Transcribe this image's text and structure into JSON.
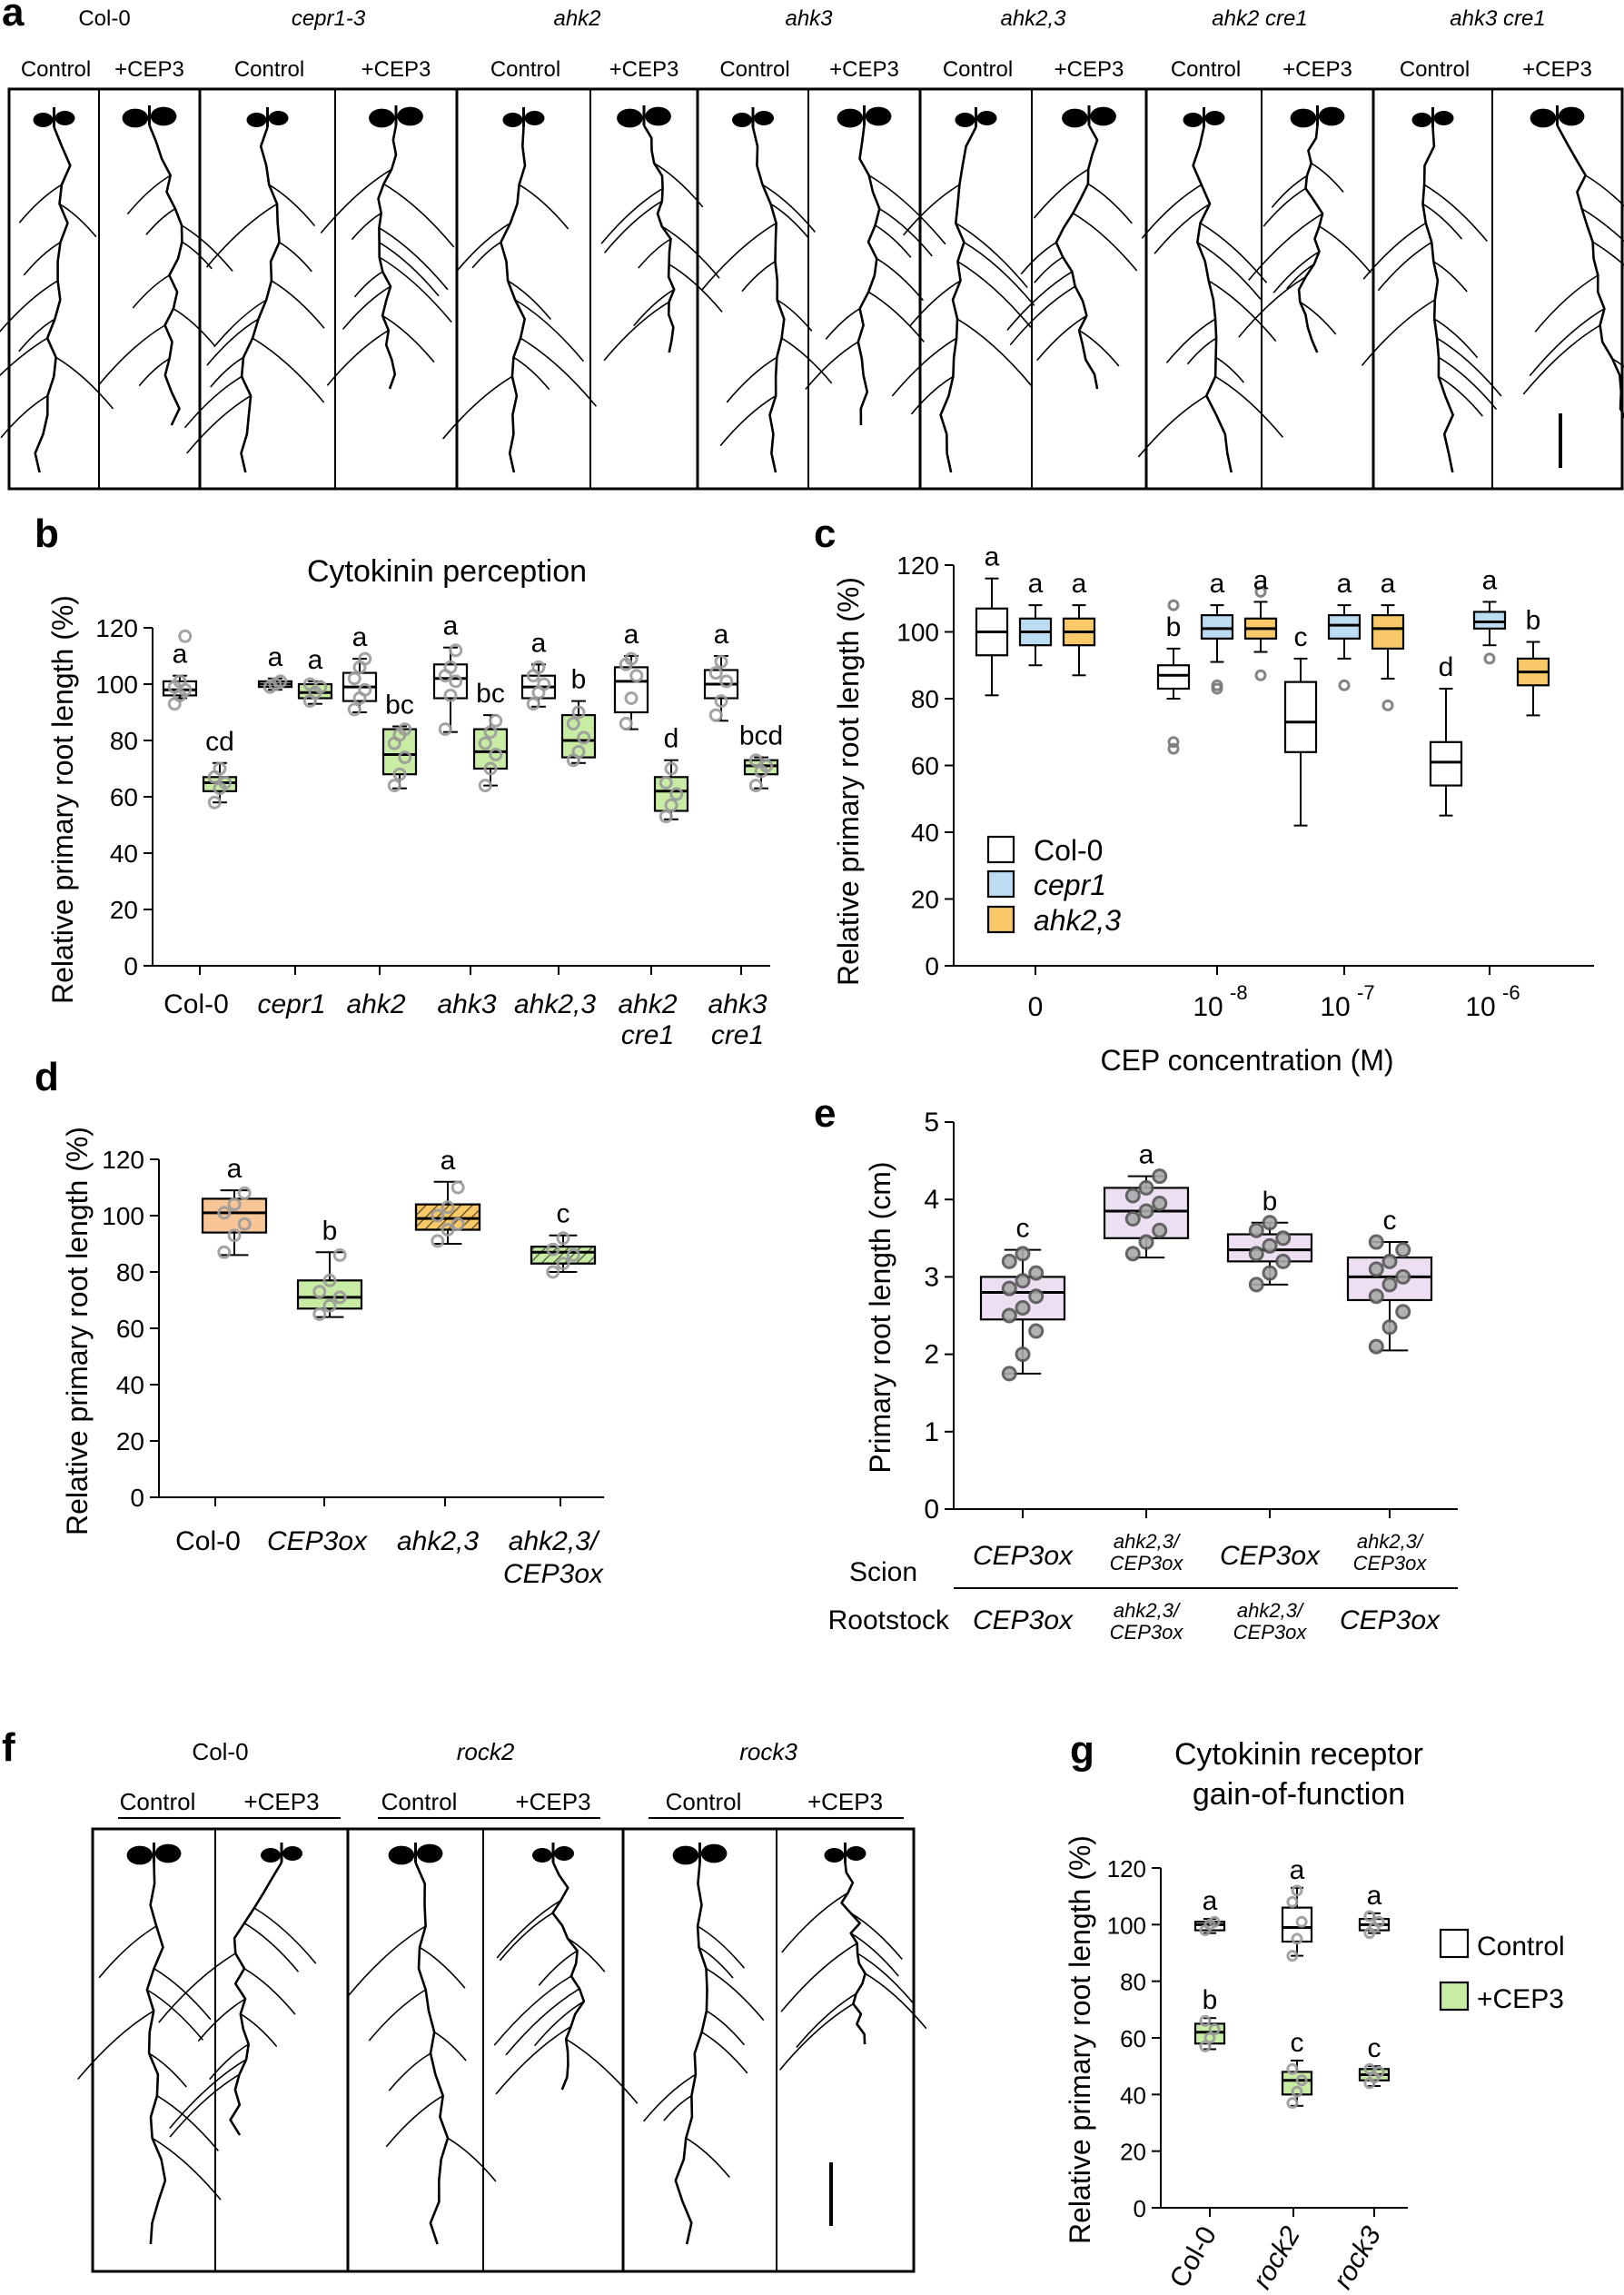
{
  "colors": {
    "white": "#ffffff",
    "green": "#c8eca4",
    "blue": "#bcdcf2",
    "yellow": "#f9c969",
    "orange": "#f8c596",
    "lavender": "#eddff2",
    "dot": "#9a9a9a",
    "dotDark": "#555555"
  },
  "panel_a": {
    "letter": "a",
    "genotypes": [
      "Col-0",
      "cepr1-3",
      "ahk2",
      "ahk3",
      "ahk2,3",
      "ahk2 cre1",
      "ahk3 cre1"
    ],
    "conditions": [
      "Control",
      "+CEP3"
    ]
  },
  "panel_f": {
    "letter": "f",
    "genotypes": [
      "Col-0",
      "rock2",
      "rock3"
    ],
    "conditions": [
      "Control",
      "+CEP3"
    ]
  },
  "chart_data": [
    {
      "id": "b",
      "type": "box",
      "title": "Cytokinin perception",
      "ylabel": "Relative primary root length (%)",
      "ylim": [
        0,
        120
      ],
      "yticks": [
        0,
        20,
        40,
        60,
        80,
        100,
        120
      ],
      "categories": [
        "Col-0",
        "cepr1",
        "ahk2",
        "ahk3",
        "ahk2,3",
        "ahk2\ncre1",
        "ahk3\ncre1"
      ],
      "series": [
        {
          "name": "Control",
          "color": "white",
          "boxes": [
            {
              "min": 95,
              "q1": 96,
              "med": 98,
              "q3": 101,
              "max": 103,
              "label": "a",
              "pts": [
                93,
                96,
                98,
                99,
                101,
                117
              ]
            },
            {
              "min": 98,
              "q1": 99,
              "med": 100,
              "q3": 101,
              "max": 102,
              "label": "a",
              "pts": [
                99,
                100,
                101
              ]
            },
            {
              "min": 90,
              "q1": 94,
              "med": 99,
              "q3": 104,
              "max": 109,
              "label": "a",
              "pts": [
                91,
                95,
                98,
                102,
                106,
                109
              ]
            },
            {
              "min": 83,
              "q1": 95,
              "med": 102,
              "q3": 107,
              "max": 113,
              "label": "a",
              "pts": [
                84,
                96,
                101,
                103,
                106,
                112
              ]
            },
            {
              "min": 92,
              "q1": 95,
              "med": 99,
              "q3": 103,
              "max": 107,
              "label": "a",
              "pts": [
                93,
                97,
                100,
                103,
                106
              ]
            },
            {
              "min": 84,
              "q1": 90,
              "med": 101,
              "q3": 106,
              "max": 110,
              "label": "a",
              "pts": [
                86,
                95,
                103,
                107,
                109
              ]
            },
            {
              "min": 87,
              "q1": 95,
              "med": 100,
              "q3": 105,
              "max": 110,
              "label": "a",
              "pts": [
                89,
                94,
                101,
                104,
                108
              ]
            }
          ]
        },
        {
          "name": "+CEP3",
          "color": "green",
          "boxes": [
            {
              "min": 58,
              "q1": 62,
              "med": 65,
              "q3": 67,
              "max": 72,
              "label": "cd",
              "pts": [
                58,
                63,
                65,
                67,
                70
              ]
            },
            {
              "min": 93,
              "q1": 95,
              "med": 97,
              "q3": 100,
              "max": 101,
              "label": "a",
              "pts": [
                94,
                97,
                99,
                100
              ]
            },
            {
              "min": 63,
              "q1": 68,
              "med": 75,
              "q3": 84,
              "max": 85,
              "label": "bc",
              "pts": [
                64,
                68,
                74,
                79,
                82,
                84
              ]
            },
            {
              "min": 64,
              "q1": 70,
              "med": 76,
              "q3": 84,
              "max": 89,
              "label": "bc",
              "pts": [
                64,
                70,
                75,
                79,
                83,
                87
              ]
            },
            {
              "min": 72,
              "q1": 74,
              "med": 80,
              "q3": 89,
              "max": 94,
              "label": "b",
              "pts": [
                73,
                76,
                81,
                86,
                90
              ]
            },
            {
              "min": 52,
              "q1": 55,
              "med": 62,
              "q3": 67,
              "max": 73,
              "label": "d",
              "pts": [
                53,
                57,
                61,
                65,
                70
              ]
            },
            {
              "min": 63,
              "q1": 68,
              "med": 71,
              "q3": 73,
              "max": 74,
              "label": "bcd",
              "pts": [
                64,
                69,
                71,
                73
              ]
            }
          ]
        }
      ]
    },
    {
      "id": "c",
      "type": "box",
      "xlabel": "CEP concentration (M)",
      "ylabel": "Relative primary root length (%)",
      "ylim": [
        0,
        120
      ],
      "yticks": [
        0,
        20,
        40,
        60,
        80,
        100,
        120
      ],
      "categories": [
        "0",
        "10",
        "10",
        "10"
      ],
      "category_exponents": [
        "",
        "-8",
        "-7",
        "-6"
      ],
      "legend": [
        "Col-0",
        "cepr1",
        "ahk2,3"
      ],
      "series": [
        {
          "name": "Col-0",
          "color": "white",
          "boxes": [
            {
              "min": 81,
              "q1": 93,
              "med": 100,
              "q3": 107,
              "max": 116,
              "label": "a",
              "pts": []
            },
            {
              "min": 80,
              "q1": 83,
              "med": 87,
              "q3": 90,
              "max": 95,
              "label": "b",
              "pts": [
                108,
                67,
                65
              ]
            },
            {
              "min": 42,
              "q1": 64,
              "med": 73,
              "q3": 85,
              "max": 92,
              "label": "c",
              "pts": []
            },
            {
              "min": 45,
              "q1": 54,
              "med": 61,
              "q3": 67,
              "max": 83,
              "label": "d",
              "pts": []
            }
          ]
        },
        {
          "name": "cepr1",
          "color": "blue",
          "boxes": [
            {
              "min": 90,
              "q1": 96,
              "med": 100,
              "q3": 104,
              "max": 108,
              "label": "a",
              "pts": []
            },
            {
              "min": 91,
              "q1": 98,
              "med": 101,
              "q3": 105,
              "max": 108,
              "label": "a",
              "pts": [
                84,
                83
              ]
            },
            {
              "min": 92,
              "q1": 98,
              "med": 102,
              "q3": 105,
              "max": 108,
              "label": "a",
              "pts": [
                84
              ]
            },
            {
              "min": 96,
              "q1": 101,
              "med": 103,
              "q3": 106,
              "max": 109,
              "label": "a",
              "pts": [
                92
              ]
            }
          ]
        },
        {
          "name": "ahk2,3",
          "color": "yellow",
          "boxes": [
            {
              "min": 87,
              "q1": 96,
              "med": 100,
              "q3": 104,
              "max": 108,
              "label": "a",
              "pts": []
            },
            {
              "min": 94,
              "q1": 98,
              "med": 101,
              "q3": 104,
              "max": 109,
              "label": "a",
              "pts": [
                112,
                87
              ]
            },
            {
              "min": 86,
              "q1": 95,
              "med": 101,
              "q3": 105,
              "max": 108,
              "label": "a",
              "pts": [
                78
              ]
            },
            {
              "min": 75,
              "q1": 84,
              "med": 88,
              "q3": 92,
              "max": 97,
              "label": "b",
              "pts": []
            }
          ]
        }
      ]
    },
    {
      "id": "d",
      "type": "box",
      "ylabel": "Relative primary root length (%)",
      "ylim": [
        0,
        120
      ],
      "yticks": [
        0,
        20,
        40,
        60,
        80,
        100,
        120
      ],
      "categories": [
        "Col-0",
        "CEP3ox",
        "ahk2,3",
        "ahk2,3/\nCEP3ox"
      ],
      "boxes": [
        {
          "min": 86,
          "q1": 94,
          "med": 101,
          "q3": 106,
          "max": 109,
          "label": "a",
          "color": "orange",
          "hatch": false,
          "pts": [
            87,
            93,
            97,
            101,
            104,
            108
          ]
        },
        {
          "min": 64,
          "q1": 67,
          "med": 71,
          "q3": 77,
          "max": 87,
          "label": "b",
          "color": "green",
          "hatch": false,
          "pts": [
            65,
            68,
            71,
            73,
            77,
            86
          ]
        },
        {
          "min": 90,
          "q1": 95,
          "med": 99,
          "q3": 104,
          "max": 112,
          "label": "a",
          "color": "yellow",
          "hatch": true,
          "pts": [
            91,
            95,
            97,
            100,
            103,
            110
          ]
        },
        {
          "min": 80,
          "q1": 83,
          "med": 87,
          "q3": 89,
          "max": 93,
          "label": "c",
          "color": "green",
          "hatch": true,
          "pts": [
            80,
            83,
            86,
            88,
            92
          ]
        }
      ]
    },
    {
      "id": "e",
      "type": "box",
      "ylabel": "Primary root length (cm)",
      "ylim": [
        0,
        5
      ],
      "yticks": [
        0,
        1,
        2,
        3,
        4,
        5
      ],
      "row_labels": [
        "Scion",
        "Rootstock"
      ],
      "scion": [
        "CEP3ox",
        "ahk2,3/\nCEP3ox",
        "CEP3ox",
        "ahk2,3/\nCEP3ox"
      ],
      "rootstock": [
        "CEP3ox",
        "ahk2,3/\nCEP3ox",
        "ahk2,3/\nCEP3ox",
        "CEP3ox"
      ],
      "boxes": [
        {
          "min": 1.75,
          "q1": 2.45,
          "med": 2.8,
          "q3": 3.0,
          "max": 3.35,
          "label": "c",
          "pts": [
            1.75,
            2.0,
            2.3,
            2.5,
            2.6,
            2.75,
            2.85,
            2.95,
            3.05,
            3.2,
            3.3
          ]
        },
        {
          "min": 3.25,
          "q1": 3.5,
          "med": 3.85,
          "q3": 4.15,
          "max": 4.3,
          "label": "a",
          "pts": [
            3.3,
            3.45,
            3.6,
            3.75,
            3.85,
            3.95,
            4.05,
            4.15,
            4.3
          ]
        },
        {
          "min": 2.9,
          "q1": 3.2,
          "med": 3.35,
          "q3": 3.55,
          "max": 3.7,
          "label": "b",
          "pts": [
            2.9,
            3.05,
            3.2,
            3.3,
            3.4,
            3.5,
            3.6,
            3.7
          ]
        },
        {
          "min": 2.05,
          "q1": 2.7,
          "med": 3.0,
          "q3": 3.25,
          "max": 3.45,
          "label": "c",
          "pts": [
            2.1,
            2.35,
            2.55,
            2.75,
            2.9,
            3.0,
            3.1,
            3.2,
            3.35,
            3.45
          ]
        }
      ]
    },
    {
      "id": "g",
      "type": "box",
      "title": "Cytokinin receptor\ngain-of-function",
      "ylabel": "Relative primary root length (%)",
      "ylim": [
        0,
        120
      ],
      "yticks": [
        0,
        20,
        40,
        60,
        80,
        100,
        120
      ],
      "categories": [
        "Col-0",
        "rock2",
        "rock3"
      ],
      "legend": [
        "Control",
        "+CEP3"
      ],
      "series": [
        {
          "name": "Control",
          "color": "white",
          "boxes": [
            {
              "min": 97,
              "q1": 98,
              "med": 100,
              "q3": 101,
              "max": 102,
              "label": "a",
              "pts": [
                98,
                100,
                101
              ]
            },
            {
              "min": 89,
              "q1": 94,
              "med": 99,
              "q3": 106,
              "max": 113,
              "label": "a",
              "pts": [
                89,
                95,
                101,
                108,
                112
              ]
            },
            {
              "min": 97,
              "q1": 98,
              "med": 100,
              "q3": 102,
              "max": 104,
              "label": "a",
              "pts": [
                97,
                99,
                101,
                103
              ]
            }
          ]
        },
        {
          "name": "+CEP3",
          "color": "green",
          "boxes": [
            {
              "min": 56,
              "q1": 58,
              "med": 62,
              "q3": 65,
              "max": 67,
              "label": "b",
              "pts": [
                57,
                60,
                63,
                66
              ]
            },
            {
              "min": 36,
              "q1": 40,
              "med": 45,
              "q3": 48,
              "max": 52,
              "label": "c",
              "pts": [
                37,
                41,
                45,
                49
              ]
            },
            {
              "min": 43,
              "q1": 45,
              "med": 47,
              "q3": 49,
              "max": 50,
              "label": "c",
              "pts": [
                44,
                46,
                48,
                49
              ]
            }
          ]
        }
      ]
    }
  ]
}
